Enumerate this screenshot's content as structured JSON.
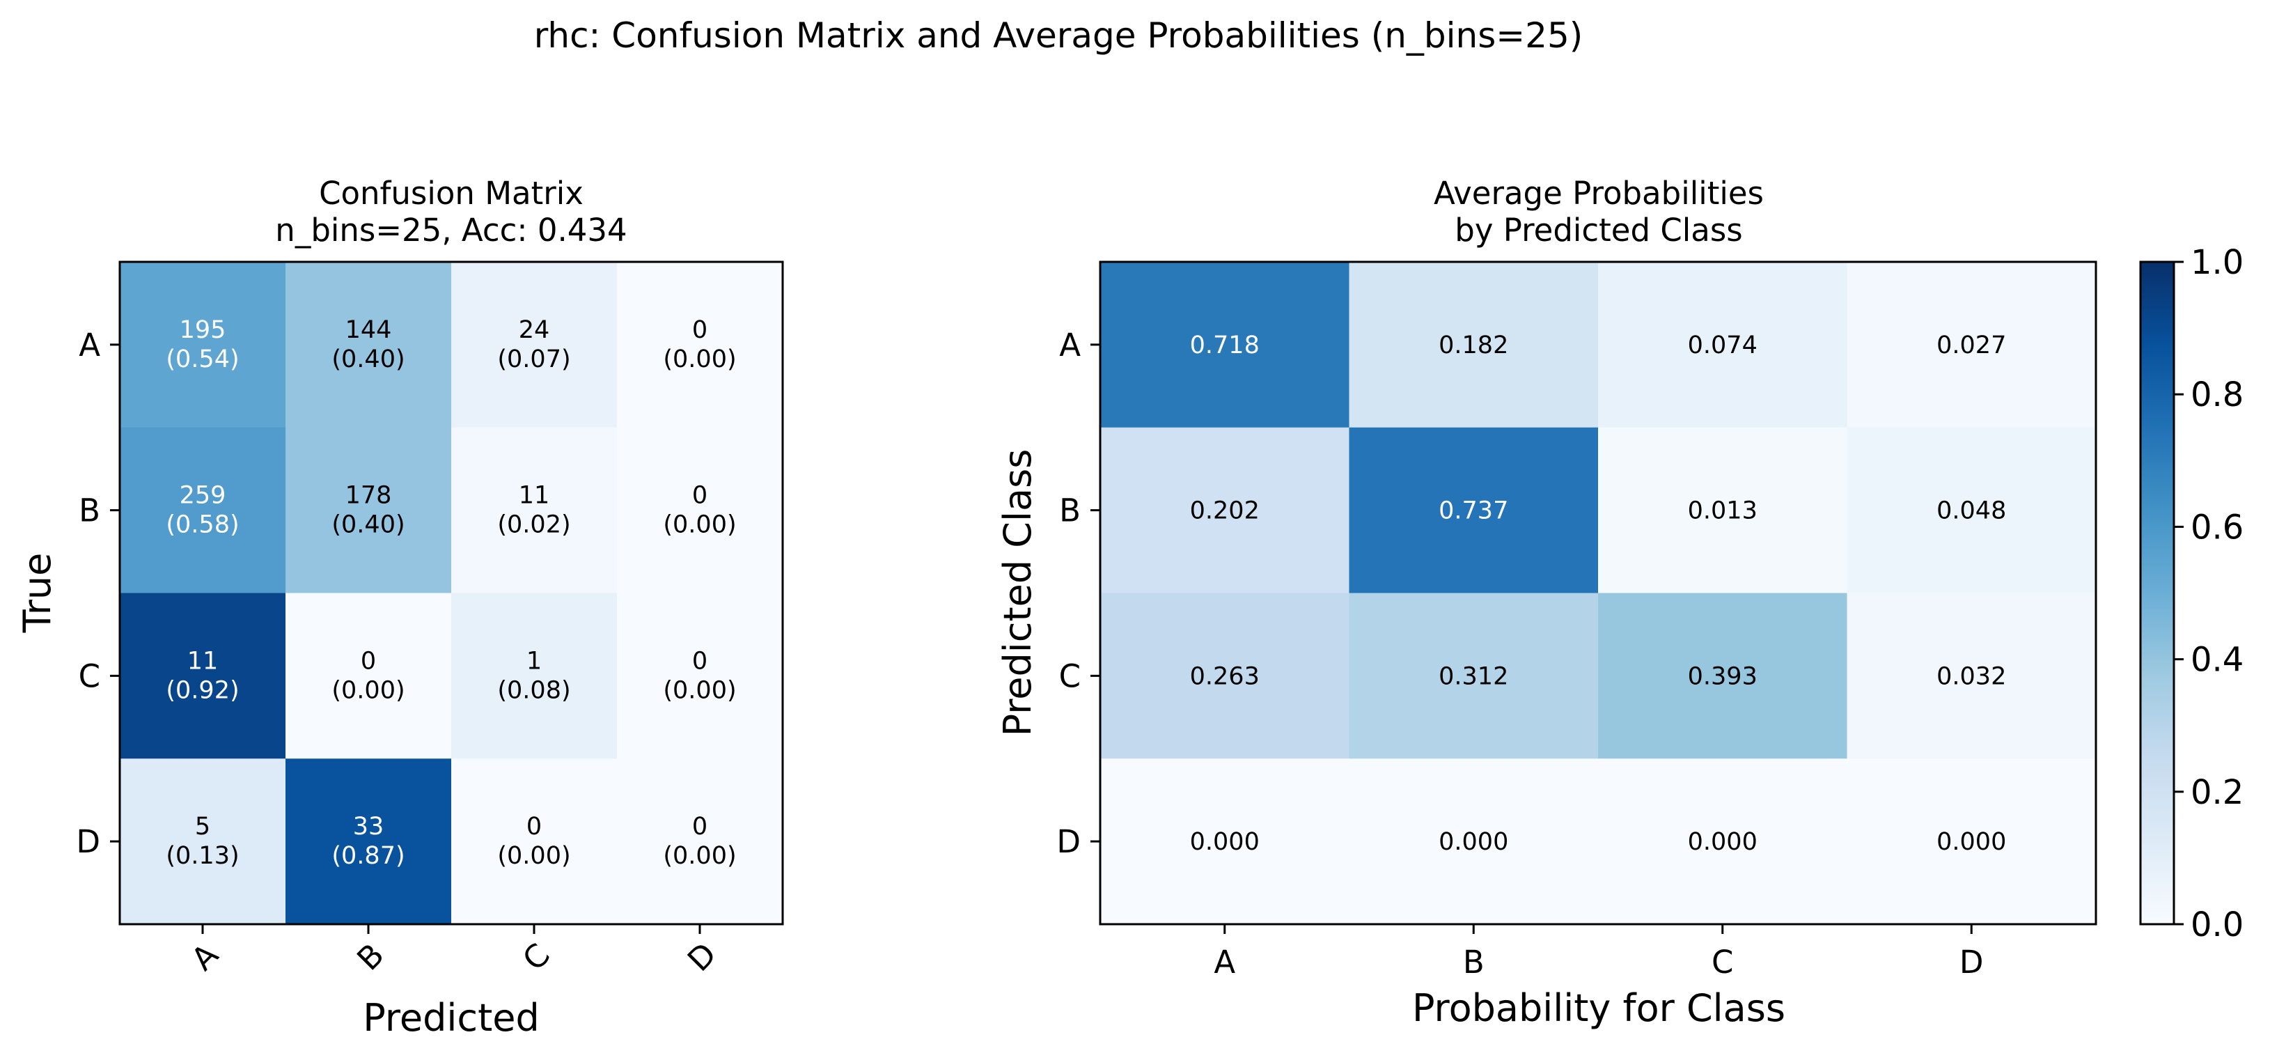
{
  "figure": {
    "suptitle": "rhc: Confusion Matrix and Average Probabilities (n_bins=25)"
  },
  "chart_data": [
    {
      "type": "heatmap",
      "title_line1": "Confusion Matrix",
      "title_line2": "n_bins=25, Acc: 0.434",
      "xlabel": "Predicted",
      "ylabel": "True",
      "x_categories": [
        "A",
        "B",
        "C",
        "D"
      ],
      "y_categories": [
        "A",
        "B",
        "C",
        "D"
      ],
      "colormap": "Blues",
      "counts": [
        [
          195,
          144,
          24,
          0
        ],
        [
          259,
          178,
          11,
          0
        ],
        [
          11,
          0,
          1,
          0
        ],
        [
          5,
          33,
          0,
          0
        ]
      ],
      "fractions": [
        [
          0.54,
          0.4,
          0.07,
          0.0
        ],
        [
          0.58,
          0.4,
          0.02,
          0.0
        ],
        [
          0.92,
          0.0,
          0.08,
          0.0
        ],
        [
          0.13,
          0.87,
          0.0,
          0.0
        ]
      ],
      "cell_labels": [
        [
          [
            "195",
            "(0.54)"
          ],
          [
            "144",
            "(0.40)"
          ],
          [
            "24",
            "(0.07)"
          ],
          [
            "0",
            "(0.00)"
          ]
        ],
        [
          [
            "259",
            "(0.58)"
          ],
          [
            "178",
            "(0.40)"
          ],
          [
            "11",
            "(0.02)"
          ],
          [
            "0",
            "(0.00)"
          ]
        ],
        [
          [
            "11",
            "(0.92)"
          ],
          [
            "0",
            "(0.00)"
          ],
          [
            "1",
            "(0.08)"
          ],
          [
            "0",
            "(0.00)"
          ]
        ],
        [
          [
            "5",
            "(0.13)"
          ],
          [
            "33",
            "(0.87)"
          ],
          [
            "0",
            "(0.00)"
          ],
          [
            "0",
            "(0.00)"
          ]
        ]
      ],
      "x_tick_rotation": "45"
    },
    {
      "type": "heatmap",
      "title_line1": "Average Probabilities",
      "title_line2": "by Predicted Class",
      "xlabel": "Probability for Class",
      "ylabel": "Predicted Class",
      "x_categories": [
        "A",
        "B",
        "C",
        "D"
      ],
      "y_categories": [
        "A",
        "B",
        "C",
        "D"
      ],
      "colormap": "Blues",
      "values": [
        [
          0.718,
          0.182,
          0.074,
          0.027
        ],
        [
          0.202,
          0.737,
          0.013,
          0.048
        ],
        [
          0.263,
          0.312,
          0.393,
          0.032
        ],
        [
          0.0,
          0.0,
          0.0,
          0.0
        ]
      ],
      "cell_labels": [
        [
          "0.718",
          "0.182",
          "0.074",
          "0.027"
        ],
        [
          "0.202",
          "0.737",
          "0.013",
          "0.048"
        ],
        [
          "0.263",
          "0.312",
          "0.393",
          "0.032"
        ],
        [
          "0.000",
          "0.000",
          "0.000",
          "0.000"
        ]
      ],
      "colorbar": {
        "range": [
          0.0,
          1.0
        ],
        "tick_labels": [
          "0.0",
          "0.2",
          "0.4",
          "0.6",
          "0.8",
          "1.0"
        ],
        "placement": "right"
      }
    }
  ]
}
